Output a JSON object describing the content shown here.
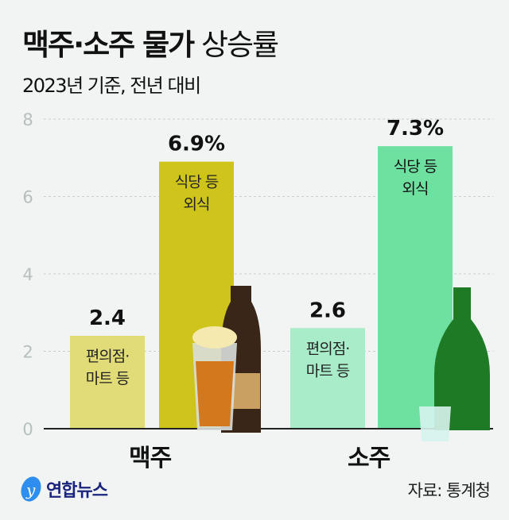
{
  "title": {
    "bold": "맥주·소주 물가",
    "light": "상승률"
  },
  "subtitle": "2023년 기준, 전년 대비",
  "source": "자료: 통계청",
  "logo": "연합뉴스",
  "chart_data": {
    "type": "bar",
    "categories": [
      "맥주",
      "소주"
    ],
    "series": [
      {
        "name": "편의점· 마트 등",
        "values": [
          2.4,
          2.6
        ],
        "colors": [
          "#e1dc78",
          "#a9ecc9"
        ]
      },
      {
        "name": "식당 등 외식",
        "values": [
          6.9,
          7.3
        ],
        "colors": [
          "#cfc41b",
          "#6ee09f"
        ]
      }
    ],
    "data_labels": [
      "2.4",
      "6.9%",
      "2.6",
      "7.3%"
    ],
    "ylim": [
      0,
      8
    ],
    "yticks": [
      0,
      2,
      4,
      6,
      8
    ],
    "grid": true,
    "legend": "inside bars"
  }
}
